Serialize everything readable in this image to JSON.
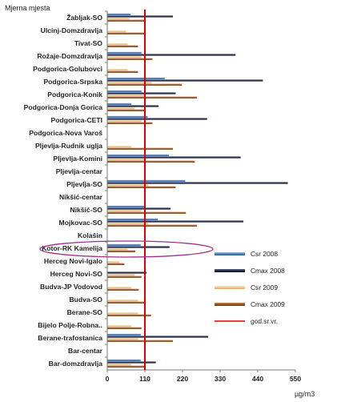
{
  "chart_data": {
    "type": "bar",
    "orientation": "horizontal",
    "title": "",
    "ylabel": "Mjerna mjesta",
    "xlabel": "µg/m3",
    "xlim": [
      0,
      550
    ],
    "xticks": [
      0,
      110,
      220,
      330,
      440,
      550
    ],
    "reference_line": {
      "name": "god.sr.vr.",
      "value": 110,
      "color": "#e00000"
    },
    "highlighted_category": "Kotor-RK Kamelija",
    "categories": [
      "Žabljak-SO",
      "Ulcinj-Domzdravlja",
      "Tivat-SO",
      "Rožaje-Domzdravlja",
      "Podgorica-Golubovci",
      "Podgorica-Srpska",
      "Podgorica-Konik",
      "Podgorica-Donja Gorica",
      "Podgorica-CETI",
      "Podgorica-Nova Varoš",
      "Pljevlja-Rudnik uglja",
      "Pljevlja-Komini",
      "Pljevlja-centar",
      "Pljevlja-SO",
      "Nikšić-centar",
      "Nikšić-SO",
      "Mojkovac-SO",
      "Kolašin",
      "Kotor-RK Kamelija",
      "Herceg Novi-Igalo",
      "Herceg Novi-SO",
      "Budva-JP Vodovod",
      "Budva-SO",
      "Berane-SO",
      "Bijelo Polje-Robna..",
      "Berane-trafostanica",
      "Bar-centar",
      "Bar-domzdravlja"
    ],
    "series": [
      {
        "name": "Csr 2008",
        "color": "#4a7fc1",
        "values": [
          68,
          0,
          0,
          100,
          0,
          168,
          100,
          70,
          118,
          0,
          0,
          180,
          0,
          228,
          0,
          110,
          148,
          0,
          98,
          0,
          0,
          0,
          0,
          0,
          0,
          98,
          0,
          98
        ]
      },
      {
        "name": "Cmax 2008",
        "color": "#1f2a44",
        "values": [
          192,
          0,
          0,
          375,
          0,
          455,
          200,
          150,
          292,
          0,
          0,
          390,
          0,
          528,
          0,
          185,
          398,
          0,
          182,
          0,
          115,
          0,
          0,
          0,
          0,
          295,
          0,
          142
        ]
      },
      {
        "name": "Csr 2009",
        "color": "#f0c890",
        "values": [
          65,
          55,
          60,
          100,
          60,
          130,
          110,
          80,
          100,
          0,
          70,
          110,
          0,
          120,
          0,
          100,
          120,
          0,
          60,
          35,
          80,
          70,
          90,
          90,
          70,
          90,
          0,
          70
        ]
      },
      {
        "name": "Cmax 2009",
        "color": "#a0541e",
        "values": [
          110,
          108,
          90,
          132,
          90,
          218,
          262,
          108,
          132,
          0,
          192,
          256,
          0,
          200,
          0,
          230,
          262,
          0,
          82,
          50,
          100,
          92,
          112,
          128,
          100,
          192,
          0,
          110
        ]
      }
    ],
    "legend": {
      "position": "right",
      "entries": [
        "Csr 2008",
        "Cmax 2008",
        "Csr 2009",
        "Cmax 2009",
        "god.sr.vr."
      ]
    },
    "grid": false
  }
}
